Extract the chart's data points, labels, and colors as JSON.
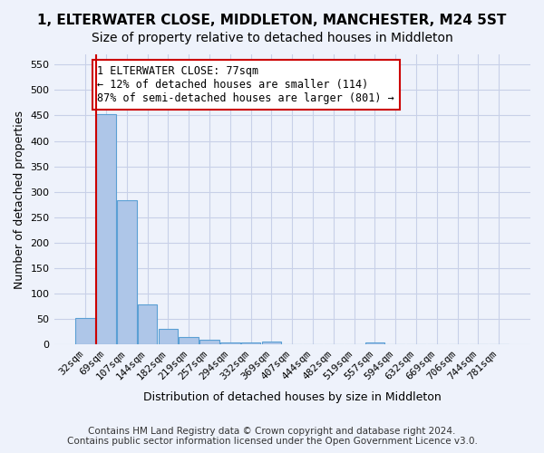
{
  "title": "1, ELTERWATER CLOSE, MIDDLETON, MANCHESTER, M24 5ST",
  "subtitle": "Size of property relative to detached houses in Middleton",
  "xlabel": "Distribution of detached houses by size in Middleton",
  "ylabel": "Number of detached properties",
  "bar_color": "#aec6e8",
  "bar_edge_color": "#5a9fd4",
  "bins": [
    "32sqm",
    "69sqm",
    "107sqm",
    "144sqm",
    "182sqm",
    "219sqm",
    "257sqm",
    "294sqm",
    "332sqm",
    "369sqm",
    "407sqm",
    "444sqm",
    "482sqm",
    "519sqm",
    "557sqm",
    "594sqm",
    "632sqm",
    "669sqm",
    "706sqm",
    "744sqm",
    "781sqm"
  ],
  "values": [
    53,
    453,
    283,
    78,
    30,
    14,
    10,
    5,
    5,
    6,
    0,
    0,
    0,
    0,
    5,
    0,
    0,
    0,
    0,
    0,
    0
  ],
  "ylim": [
    0,
    570
  ],
  "yticks": [
    0,
    50,
    100,
    150,
    200,
    250,
    300,
    350,
    400,
    450,
    500,
    550
  ],
  "red_line_x": 0.525,
  "annotation_text": "1 ELTERWATER CLOSE: 77sqm\n← 12% of detached houses are smaller (114)\n87% of semi-detached houses are larger (801) →",
  "annotation_box_facecolor": "#ffffff",
  "annotation_box_edgecolor": "#cc0000",
  "footer_line1": "Contains HM Land Registry data © Crown copyright and database right 2024.",
  "footer_line2": "Contains public sector information licensed under the Open Government Licence v3.0.",
  "bg_color": "#eef2fb",
  "grid_color": "#c8d0e8",
  "title_fontsize": 11,
  "subtitle_fontsize": 10,
  "axis_label_fontsize": 9,
  "tick_fontsize": 8,
  "footer_fontsize": 7.5,
  "annotation_fontsize": 8.5
}
